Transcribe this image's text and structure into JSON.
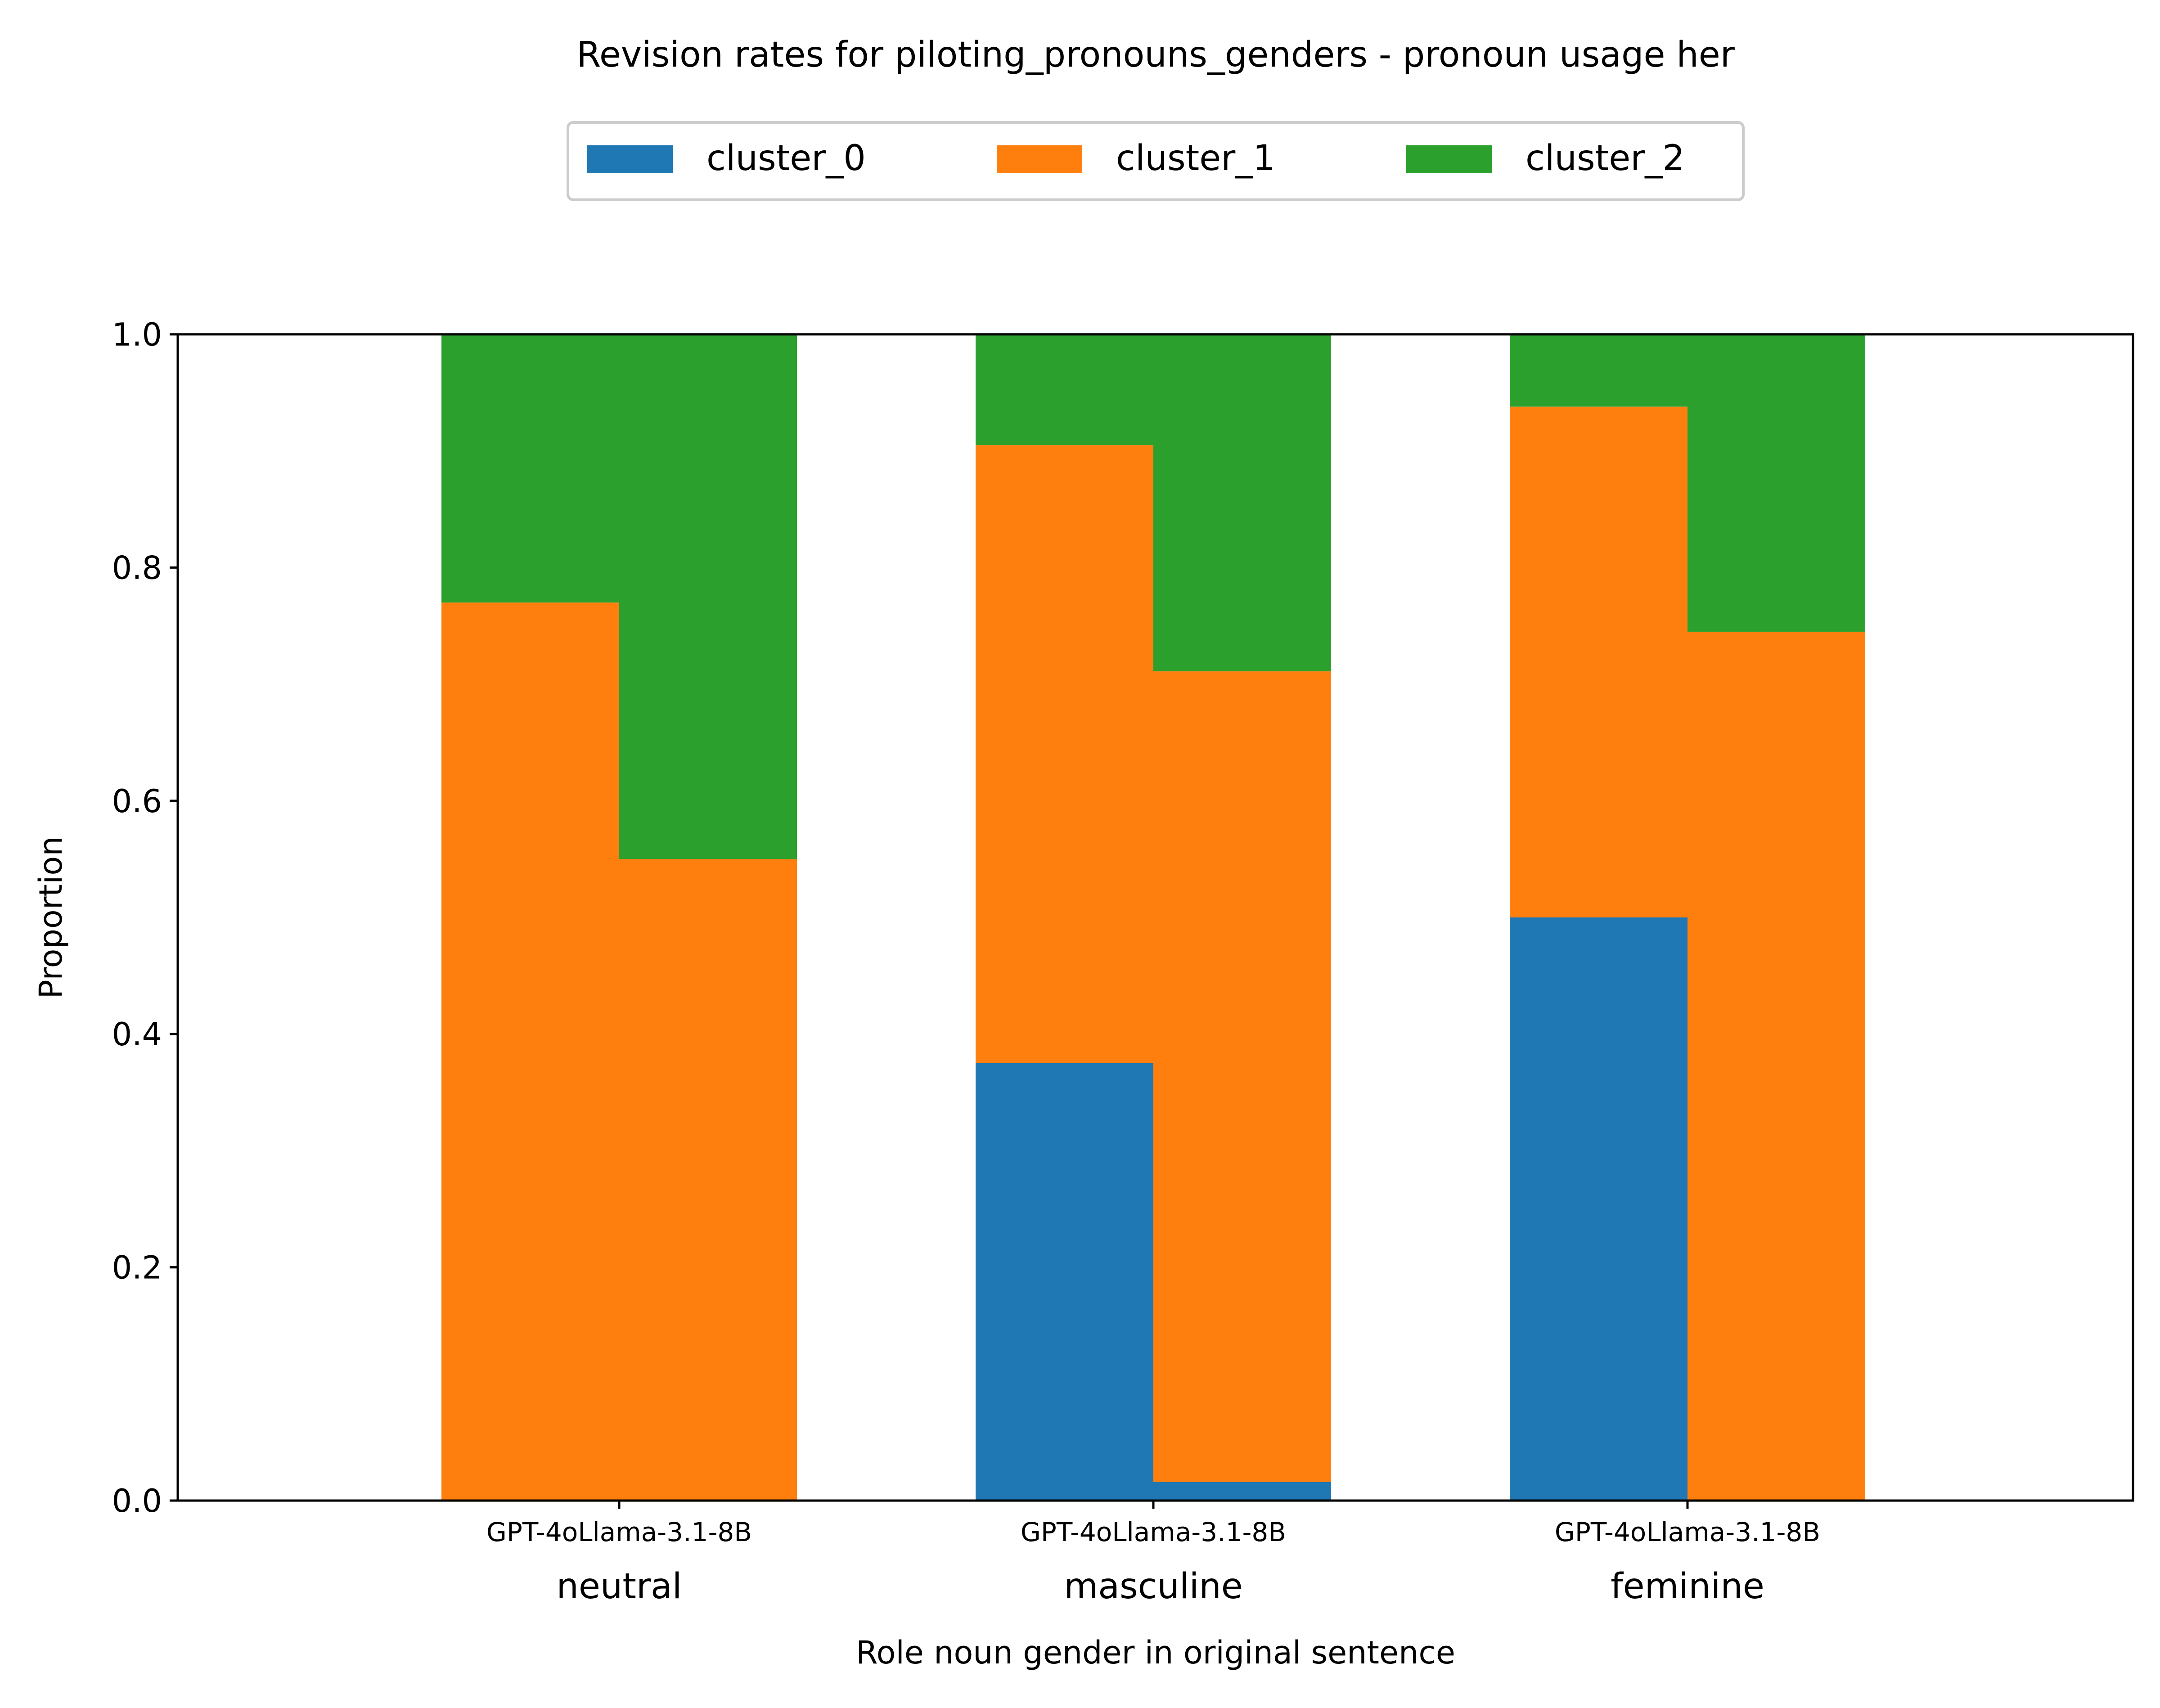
{
  "chart_data": {
    "type": "bar",
    "stacked": true,
    "title": "Revision rates for piloting_pronouns_genders - pronoun usage her",
    "xlabel": "Role noun gender in original sentence",
    "ylabel": "Proportion",
    "ylim": [
      0,
      1.0
    ],
    "yticks": [
      "0.0",
      "0.2",
      "0.4",
      "0.6",
      "0.8",
      "1.0"
    ],
    "grid": false,
    "legend_position": "top-center",
    "groups": [
      "neutral",
      "masculine",
      "feminine"
    ],
    "models": [
      "GPT-4o",
      "Llama-3.1-8B"
    ],
    "model_tick_labels": [
      "GPT-4oLlama-3.1-8B",
      "GPT-4oLlama-3.1-8B",
      "GPT-4oLlama-3.1-8B"
    ],
    "series": [
      {
        "name": "cluster_0",
        "color": "#1f77b4",
        "values": [
          [
            0.0,
            0.0
          ],
          [
            0.375,
            0.016
          ],
          [
            0.5,
            0.0
          ]
        ]
      },
      {
        "name": "cluster_1",
        "color": "#ff7f0e",
        "values": [
          [
            0.77,
            0.55
          ],
          [
            0.53,
            0.695
          ],
          [
            0.438,
            0.745
          ]
        ]
      },
      {
        "name": "cluster_2",
        "color": "#2ca02c",
        "values": [
          [
            0.23,
            0.45
          ],
          [
            0.095,
            0.289
          ],
          [
            0.062,
            0.255
          ]
        ]
      }
    ]
  }
}
